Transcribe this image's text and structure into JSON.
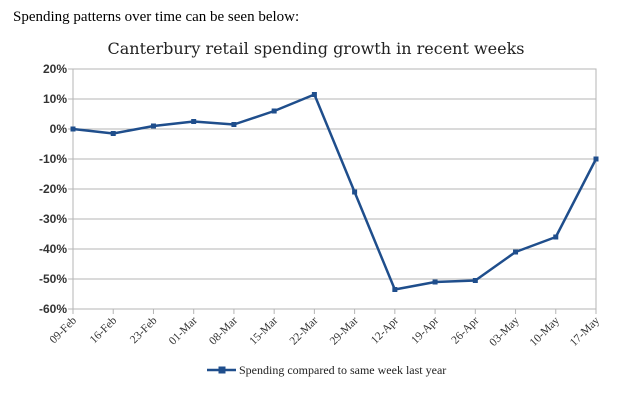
{
  "intro_text": "Spending patterns over time can be seen below:",
  "chart_data": {
    "type": "line",
    "title": "Canterbury retail spending growth in recent weeks",
    "xlabel": "",
    "ylabel": "",
    "categories": [
      "09-Feb",
      "16-Feb",
      "23-Feb",
      "01-Mar",
      "08-Mar",
      "15-Mar",
      "22-Mar",
      "29-Mar",
      "12-Apr",
      "19-Apr",
      "26-Apr",
      "03-May",
      "10-May",
      "17-May"
    ],
    "yticks": [
      "20%",
      "10%",
      "0%",
      "-10%",
      "-20%",
      "-30%",
      "-40%",
      "-50%",
      "-60%"
    ],
    "ylim": [
      -60,
      20
    ],
    "series": [
      {
        "name": "Spending compared to same week last year",
        "values": [
          0,
          -1.5,
          1,
          2.5,
          1.5,
          6,
          11.5,
          -21,
          -53.5,
          -51,
          -50.5,
          -41,
          -36,
          -10
        ],
        "color": "#1f4e8c"
      }
    ],
    "grid": true,
    "legend": "bottom"
  }
}
